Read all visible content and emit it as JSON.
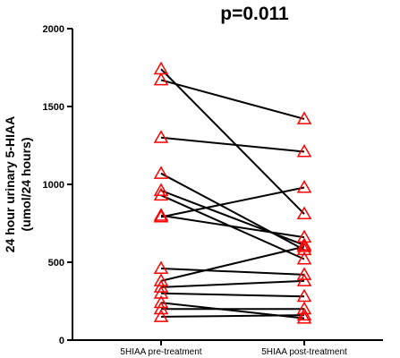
{
  "chart_data": {
    "type": "line",
    "title": "p=0.011",
    "ylabel_line1": "24 hour urinary 5-HIAA",
    "ylabel_line2": "(umol/24 hours)",
    "categories": [
      "5HIAA pre-treatment",
      "5HIAA post-treatment"
    ],
    "ylim": [
      0,
      2000
    ],
    "yticks": [
      "0",
      "500",
      "1000",
      "1500",
      "2000"
    ],
    "marker": "triangle-open",
    "colors": {
      "marker": "#ff0000",
      "line": "#000000",
      "axis": "#000000"
    },
    "pairs": [
      [
        1740,
        810
      ],
      [
        1670,
        1420
      ],
      [
        1300,
        1210
      ],
      [
        1070,
        580
      ],
      [
        960,
        610
      ],
      [
        930,
        520
      ],
      [
        800,
        660
      ],
      [
        790,
        980
      ],
      [
        460,
        420
      ],
      [
        380,
        600
      ],
      [
        340,
        380
      ],
      [
        300,
        280
      ],
      [
        240,
        140
      ],
      [
        200,
        200
      ],
      [
        150,
        160
      ]
    ]
  }
}
